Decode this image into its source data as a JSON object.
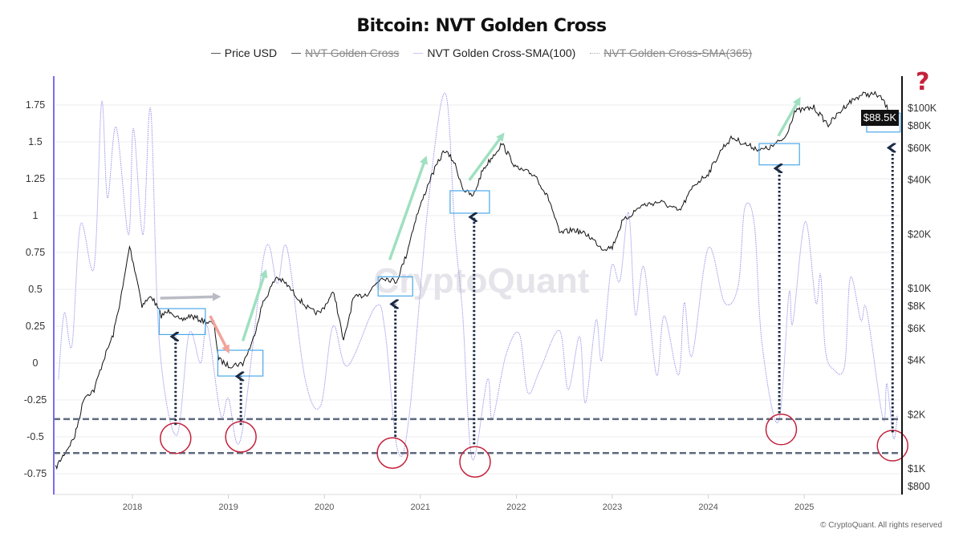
{
  "title": "Bitcoin: NVT Golden Cross",
  "legend": [
    {
      "label": "Price USD",
      "enabled": true,
      "color": "#555555",
      "style": "solid"
    },
    {
      "label": "NVT Golden Cross",
      "enabled": false,
      "color": "#555555",
      "style": "solid"
    },
    {
      "label": "NVT Golden Cross-SMA(100)",
      "enabled": true,
      "color": "#b8b4ee",
      "style": "solid"
    },
    {
      "label": "NVT Golden Cross-SMA(365)",
      "enabled": false,
      "color": "#aaaaaa",
      "style": "dotted"
    }
  ],
  "watermark": "CryptoQuant",
  "footer": "© CryptoQuant. All rights reserved",
  "question_mark": "?",
  "current_price_label": "$88.5K",
  "chart_data": {
    "type": "line",
    "title": "Bitcoin: NVT Golden Cross",
    "grid": true,
    "legend_position": "top",
    "x_range": [
      2017.17,
      2026.0
    ],
    "x_ticks": [
      "2018",
      "2019",
      "2020",
      "2021",
      "2022",
      "2023",
      "2024",
      "2025"
    ],
    "y_left": {
      "range": [
        -0.85,
        1.95
      ],
      "ticks": [
        "1.75",
        "1.5",
        "1.25",
        "1",
        "0.75",
        "0.5",
        "0.25",
        "0",
        "-0.25",
        "-0.5",
        "-0.75"
      ]
    },
    "y_right": {
      "scale": "log",
      "range": [
        700,
        180000
      ],
      "ticks": [
        "$100K",
        "$80K",
        "$60K",
        "$40K",
        "$20K",
        "$10K",
        "$8K",
        "$6K",
        "$4K",
        "$2K",
        "$1K",
        "$800"
      ]
    },
    "series": [
      {
        "name": "Price USD",
        "axis": "right",
        "color": "#111111",
        "x": [
          2017.2,
          2017.4,
          2017.5,
          2017.6,
          2017.7,
          2017.8,
          2017.9,
          2017.97,
          2018.05,
          2018.1,
          2018.2,
          2018.3,
          2018.4,
          2018.5,
          2018.6,
          2018.75,
          2018.85,
          2018.9,
          2019.0,
          2019.15,
          2019.25,
          2019.35,
          2019.5,
          2019.6,
          2019.75,
          2019.85,
          2019.95,
          2020.1,
          2020.2,
          2020.3,
          2020.45,
          2020.6,
          2020.75,
          2020.85,
          2020.95,
          2021.1,
          2021.25,
          2021.35,
          2021.45,
          2021.55,
          2021.65,
          2021.85,
          2022.0,
          2022.2,
          2022.35,
          2022.45,
          2022.6,
          2022.75,
          2022.9,
          2023.0,
          2023.1,
          2023.3,
          2023.5,
          2023.7,
          2023.85,
          2024.0,
          2024.15,
          2024.25,
          2024.4,
          2024.55,
          2024.65,
          2024.8,
          2024.9,
          2025.1,
          2025.25,
          2025.45,
          2025.6,
          2025.75,
          2025.82,
          2025.9,
          2025.97
        ],
        "y": [
          1000,
          1500,
          2500,
          2700,
          4000,
          5500,
          10000,
          17000,
          11000,
          8000,
          9000,
          7000,
          7500,
          6500,
          7000,
          6500,
          6300,
          4000,
          3700,
          3800,
          5000,
          8000,
          11500,
          10500,
          8500,
          7500,
          7200,
          9500,
          5000,
          8700,
          9300,
          11500,
          10800,
          15000,
          24000,
          40000,
          58000,
          50000,
          35000,
          32000,
          45000,
          63000,
          46000,
          42000,
          30000,
          20000,
          21000,
          19500,
          16500,
          16800,
          23000,
          28500,
          30000,
          26500,
          37000,
          43000,
          60000,
          68000,
          62000,
          58000,
          60000,
          68000,
          95000,
          100000,
          80000,
          105000,
          118000,
          118000,
          110000,
          90000,
          88500
        ]
      },
      {
        "name": "NVT Golden Cross-SMA(100)",
        "axis": "left",
        "color": "#9e98e8",
        "x": [
          2017.23,
          2017.29,
          2017.37,
          2017.46,
          2017.6,
          2017.68,
          2017.74,
          2017.83,
          2017.96,
          2018.01,
          2018.11,
          2018.19,
          2018.28,
          2018.46,
          2018.59,
          2018.71,
          2018.78,
          2018.92,
          2019.0,
          2019.13,
          2019.38,
          2019.51,
          2019.61,
          2019.8,
          2019.96,
          2020.09,
          2020.24,
          2020.53,
          2020.63,
          2020.76,
          2020.88,
          2021.08,
          2021.26,
          2021.36,
          2021.44,
          2021.54,
          2021.7,
          2021.75,
          2021.89,
          2022.03,
          2022.12,
          2022.25,
          2022.45,
          2022.54,
          2022.66,
          2022.72,
          2022.83,
          2022.89,
          2022.99,
          2023.08,
          2023.17,
          2023.24,
          2023.33,
          2023.46,
          2023.54,
          2023.69,
          2023.75,
          2023.83,
          2024.0,
          2024.17,
          2024.31,
          2024.38,
          2024.48,
          2024.56,
          2024.73,
          2024.84,
          2024.88,
          2025.01,
          2025.12,
          2025.17,
          2025.22,
          2025.3,
          2025.42,
          2025.48,
          2025.59,
          2025.65,
          2025.82,
          2025.86,
          2025.93,
          2025.97
        ],
        "y": [
          -0.11,
          0.34,
          0.12,
          0.94,
          0.65,
          1.77,
          1.12,
          1.6,
          0.87,
          1.59,
          0.87,
          1.72,
          0.14,
          -0.49,
          0.2,
          0,
          0.25,
          -0.35,
          -0.24,
          -0.51,
          0.76,
          0.54,
          0.78,
          -0.11,
          -0.29,
          0.25,
          -0.02,
          0.38,
          0.23,
          -0.58,
          -0.38,
          1.07,
          1.83,
          0.89,
          0.34,
          -0.65,
          -0.11,
          -0.38,
          0.05,
          0.2,
          -0.2,
          -0.04,
          0.22,
          -0.18,
          0.18,
          -0.27,
          0.29,
          0.02,
          0.65,
          0.56,
          1.02,
          0.33,
          0.65,
          -0.08,
          0.32,
          -0.08,
          0.41,
          0.05,
          0.78,
          0.41,
          0.52,
          1.05,
          0.94,
          0.13,
          -0.4,
          0.47,
          0.27,
          0.96,
          0.41,
          0.6,
          0.09,
          -0.04,
          -0.02,
          0.58,
          0.29,
          0.36,
          -0.38,
          -0.14,
          -0.51,
          -0.35
        ]
      }
    ],
    "annotations": {
      "threshold_lines": [
        -0.38,
        -0.61
      ],
      "circles": [
        {
          "x": 2018.45,
          "y": -0.51
        },
        {
          "x": 2019.13,
          "y": -0.5
        },
        {
          "x": 2020.71,
          "y": -0.61
        },
        {
          "x": 2021.57,
          "y": -0.67
        },
        {
          "x": 2024.76,
          "y": -0.45
        },
        {
          "x": 2025.92,
          "y": -0.56
        }
      ],
      "price_boxes": [
        {
          "x0": 2018.28,
          "x1": 2018.76,
          "p0": 5500,
          "p1": 7660
        },
        {
          "x0": 2018.89,
          "x1": 2019.36,
          "p0": 3240,
          "p1": 4500
        },
        {
          "x0": 2020.56,
          "x1": 2020.92,
          "p0": 9000,
          "p1": 11500
        },
        {
          "x0": 2021.31,
          "x1": 2021.72,
          "p0": 25900,
          "p1": 34500
        },
        {
          "x0": 2024.53,
          "x1": 2024.95,
          "p0": 48000,
          "p1": 63000
        },
        {
          "x0": 2025.65,
          "x1": 2026.0,
          "p0": 73000,
          "p1": 93000
        }
      ],
      "up_arrows": [
        {
          "x": 2018.45,
          "from": -0.42,
          "to": 0.18
        },
        {
          "x": 2019.13,
          "from": -0.42,
          "to": -0.09
        },
        {
          "x": 2020.74,
          "from": -0.5,
          "to": 0.4
        },
        {
          "x": 2021.56,
          "from": -0.55,
          "to": 0.99
        },
        {
          "x": 2024.74,
          "from": -0.34,
          "to": 1.32
        },
        {
          "x": 2025.92,
          "from": -0.47,
          "to": 1.46
        }
      ],
      "trend_arrows": [
        {
          "x0": 2018.29,
          "y0": 0.44,
          "x1": 2018.88,
          "y1": 0.45,
          "color": "#b9bcc4"
        },
        {
          "x0": 2018.81,
          "y0": 0.32,
          "x1": 2018.99,
          "y1": 0.09,
          "color": "#f2a39a"
        },
        {
          "x0": 2019.15,
          "y0": 0.15,
          "x1": 2019.38,
          "y1": 0.61,
          "color": "#9fe0c0"
        },
        {
          "x0": 2020.68,
          "y0": 0.7,
          "x1": 2021.05,
          "y1": 1.38,
          "color": "#9fe0c0"
        },
        {
          "x0": 2021.51,
          "y0": 1.24,
          "x1": 2021.85,
          "y1": 1.54,
          "color": "#9fe0c0"
        },
        {
          "x0": 2024.73,
          "y0": 1.54,
          "x1": 2024.94,
          "y1": 1.78,
          "color": "#9fe0c0"
        }
      ]
    }
  }
}
